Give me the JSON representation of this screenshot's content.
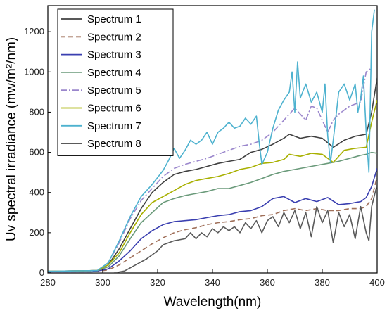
{
  "chart_data": {
    "type": "line",
    "title": "",
    "xlabel": "Wavelength(nm)",
    "ylabel": "Uv spectral irradiance (mw/m²/nm)",
    "xlim": [
      280,
      400
    ],
    "ylim": [
      0,
      1330
    ],
    "xticks": [
      280,
      300,
      320,
      340,
      360,
      380,
      400
    ],
    "yticks": [
      0,
      200,
      400,
      600,
      800,
      1000,
      1200
    ],
    "grid": false,
    "legend_position": "top-left",
    "series": [
      {
        "name": "Spectrum 1",
        "color": "#404040",
        "dash": "solid",
        "points": [
          [
            280,
            8
          ],
          [
            290,
            10
          ],
          [
            298,
            12
          ],
          [
            302,
            40
          ],
          [
            306,
            120
          ],
          [
            310,
            220
          ],
          [
            314,
            320
          ],
          [
            318,
            400
          ],
          [
            322,
            450
          ],
          [
            326,
            490
          ],
          [
            330,
            505
          ],
          [
            334,
            515
          ],
          [
            338,
            530
          ],
          [
            342,
            545
          ],
          [
            346,
            555
          ],
          [
            350,
            565
          ],
          [
            354,
            600
          ],
          [
            358,
            615
          ],
          [
            362,
            640
          ],
          [
            366,
            670
          ],
          [
            368,
            690
          ],
          [
            372,
            670
          ],
          [
            376,
            680
          ],
          [
            380,
            670
          ],
          [
            384,
            625
          ],
          [
            388,
            660
          ],
          [
            392,
            680
          ],
          [
            396,
            690
          ],
          [
            398,
            800
          ],
          [
            400,
            970
          ]
        ]
      },
      {
        "name": "Spectrum 2",
        "color": "#a0705a",
        "dash": "dashed",
        "points": [
          [
            280,
            5
          ],
          [
            296,
            5
          ],
          [
            302,
            15
          ],
          [
            306,
            40
          ],
          [
            310,
            75
          ],
          [
            314,
            110
          ],
          [
            318,
            145
          ],
          [
            322,
            175
          ],
          [
            326,
            200
          ],
          [
            330,
            215
          ],
          [
            334,
            225
          ],
          [
            338,
            240
          ],
          [
            342,
            250
          ],
          [
            346,
            255
          ],
          [
            350,
            265
          ],
          [
            354,
            270
          ],
          [
            358,
            285
          ],
          [
            362,
            290
          ],
          [
            366,
            310
          ],
          [
            370,
            320
          ],
          [
            374,
            310
          ],
          [
            378,
            320
          ],
          [
            382,
            310
          ],
          [
            386,
            310
          ],
          [
            390,
            320
          ],
          [
            394,
            320
          ],
          [
            396,
            330
          ],
          [
            398,
            370
          ],
          [
            400,
            480
          ]
        ]
      },
      {
        "name": "Spectrum 3",
        "color": "#3a3fb0",
        "dash": "solid",
        "points": [
          [
            280,
            5
          ],
          [
            296,
            5
          ],
          [
            302,
            20
          ],
          [
            306,
            60
          ],
          [
            310,
            110
          ],
          [
            314,
            170
          ],
          [
            318,
            210
          ],
          [
            322,
            240
          ],
          [
            326,
            255
          ],
          [
            330,
            260
          ],
          [
            334,
            265
          ],
          [
            338,
            275
          ],
          [
            342,
            285
          ],
          [
            346,
            290
          ],
          [
            350,
            305
          ],
          [
            354,
            310
          ],
          [
            358,
            330
          ],
          [
            362,
            370
          ],
          [
            366,
            380
          ],
          [
            370,
            350
          ],
          [
            374,
            370
          ],
          [
            378,
            355
          ],
          [
            382,
            375
          ],
          [
            386,
            340
          ],
          [
            390,
            345
          ],
          [
            394,
            355
          ],
          [
            396,
            375
          ],
          [
            398,
            430
          ],
          [
            400,
            520
          ]
        ]
      },
      {
        "name": "Spectrum 4",
        "color": "#6a9a7a",
        "dash": "solid",
        "points": [
          [
            280,
            8
          ],
          [
            290,
            10
          ],
          [
            298,
            12
          ],
          [
            302,
            30
          ],
          [
            306,
            85
          ],
          [
            310,
            170
          ],
          [
            314,
            250
          ],
          [
            318,
            300
          ],
          [
            322,
            350
          ],
          [
            326,
            370
          ],
          [
            330,
            385
          ],
          [
            334,
            395
          ],
          [
            338,
            405
          ],
          [
            342,
            420
          ],
          [
            346,
            420
          ],
          [
            350,
            435
          ],
          [
            354,
            450
          ],
          [
            358,
            470
          ],
          [
            362,
            490
          ],
          [
            366,
            505
          ],
          [
            370,
            515
          ],
          [
            374,
            525
          ],
          [
            378,
            535
          ],
          [
            382,
            545
          ],
          [
            386,
            555
          ],
          [
            390,
            570
          ],
          [
            394,
            585
          ],
          [
            396,
            590
          ],
          [
            398,
            600
          ],
          [
            400,
            595
          ]
        ]
      },
      {
        "name": "Spectrum 5",
        "color": "#9a86cc",
        "dash": "dashdot",
        "points": [
          [
            280,
            8
          ],
          [
            290,
            10
          ],
          [
            298,
            12
          ],
          [
            302,
            50
          ],
          [
            306,
            150
          ],
          [
            310,
            270
          ],
          [
            314,
            360
          ],
          [
            318,
            420
          ],
          [
            322,
            480
          ],
          [
            326,
            520
          ],
          [
            330,
            540
          ],
          [
            334,
            555
          ],
          [
            338,
            570
          ],
          [
            342,
            590
          ],
          [
            346,
            610
          ],
          [
            350,
            630
          ],
          [
            354,
            640
          ],
          [
            358,
            660
          ],
          [
            362,
            700
          ],
          [
            366,
            760
          ],
          [
            370,
            820
          ],
          [
            374,
            760
          ],
          [
            376,
            830
          ],
          [
            378,
            820
          ],
          [
            382,
            700
          ],
          [
            384,
            760
          ],
          [
            386,
            790
          ],
          [
            390,
            830
          ],
          [
            394,
            850
          ],
          [
            396,
            1000
          ],
          [
            398,
            1020
          ]
        ]
      },
      {
        "name": "Spectrum 6",
        "color": "#a8b000",
        "dash": "solid",
        "points": [
          [
            280,
            8
          ],
          [
            290,
            10
          ],
          [
            298,
            12
          ],
          [
            302,
            40
          ],
          [
            306,
            100
          ],
          [
            310,
            200
          ],
          [
            314,
            290
          ],
          [
            318,
            350
          ],
          [
            322,
            380
          ],
          [
            326,
            410
          ],
          [
            330,
            440
          ],
          [
            334,
            460
          ],
          [
            338,
            470
          ],
          [
            342,
            480
          ],
          [
            346,
            495
          ],
          [
            350,
            515
          ],
          [
            354,
            525
          ],
          [
            358,
            545
          ],
          [
            362,
            550
          ],
          [
            366,
            565
          ],
          [
            368,
            590
          ],
          [
            372,
            580
          ],
          [
            376,
            595
          ],
          [
            380,
            590
          ],
          [
            384,
            550
          ],
          [
            388,
            610
          ],
          [
            392,
            620
          ],
          [
            396,
            625
          ],
          [
            398,
            750
          ],
          [
            400,
            860
          ]
        ]
      },
      {
        "name": "Spectrum 7",
        "color": "#4eb2cf",
        "dash": "solid",
        "points": [
          [
            280,
            8
          ],
          [
            290,
            10
          ],
          [
            298,
            12
          ],
          [
            302,
            50
          ],
          [
            306,
            160
          ],
          [
            310,
            280
          ],
          [
            314,
            380
          ],
          [
            318,
            440
          ],
          [
            322,
            510
          ],
          [
            324,
            560
          ],
          [
            326,
            620
          ],
          [
            328,
            570
          ],
          [
            330,
            610
          ],
          [
            332,
            660
          ],
          [
            334,
            640
          ],
          [
            336,
            660
          ],
          [
            338,
            700
          ],
          [
            340,
            640
          ],
          [
            342,
            700
          ],
          [
            344,
            720
          ],
          [
            346,
            750
          ],
          [
            348,
            720
          ],
          [
            350,
            730
          ],
          [
            352,
            770
          ],
          [
            354,
            740
          ],
          [
            356,
            780
          ],
          [
            357,
            650
          ],
          [
            358,
            540
          ],
          [
            360,
            600
          ],
          [
            362,
            720
          ],
          [
            364,
            810
          ],
          [
            366,
            860
          ],
          [
            368,
            900
          ],
          [
            369,
            1000
          ],
          [
            370,
            800
          ],
          [
            371,
            1050
          ],
          [
            372,
            870
          ],
          [
            374,
            940
          ],
          [
            376,
            850
          ],
          [
            378,
            900
          ],
          [
            380,
            800
          ],
          [
            381,
            940
          ],
          [
            382,
            680
          ],
          [
            383,
            550
          ],
          [
            384,
            660
          ],
          [
            386,
            900
          ],
          [
            388,
            940
          ],
          [
            390,
            860
          ],
          [
            392,
            940
          ],
          [
            393,
            800
          ],
          [
            394,
            870
          ],
          [
            395,
            980
          ],
          [
            396,
            700
          ],
          [
            397,
            500
          ],
          [
            398,
            1200
          ],
          [
            399,
            1310
          ]
        ]
      },
      {
        "name": "Spectrum 8",
        "color": "#5a5a5a",
        "dash": "solid",
        "points": [
          [
            280,
            0
          ],
          [
            296,
            0
          ],
          [
            304,
            0
          ],
          [
            308,
            10
          ],
          [
            312,
            40
          ],
          [
            316,
            70
          ],
          [
            320,
            110
          ],
          [
            322,
            140
          ],
          [
            326,
            160
          ],
          [
            330,
            170
          ],
          [
            332,
            200
          ],
          [
            334,
            170
          ],
          [
            336,
            200
          ],
          [
            338,
            180
          ],
          [
            340,
            220
          ],
          [
            342,
            200
          ],
          [
            344,
            230
          ],
          [
            346,
            210
          ],
          [
            348,
            230
          ],
          [
            350,
            200
          ],
          [
            352,
            250
          ],
          [
            354,
            220
          ],
          [
            356,
            260
          ],
          [
            358,
            200
          ],
          [
            360,
            260
          ],
          [
            362,
            280
          ],
          [
            364,
            230
          ],
          [
            366,
            300
          ],
          [
            368,
            250
          ],
          [
            370,
            310
          ],
          [
            372,
            220
          ],
          [
            374,
            300
          ],
          [
            376,
            180
          ],
          [
            378,
            330
          ],
          [
            380,
            250
          ],
          [
            382,
            310
          ],
          [
            384,
            150
          ],
          [
            386,
            300
          ],
          [
            388,
            230
          ],
          [
            390,
            290
          ],
          [
            392,
            170
          ],
          [
            394,
            330
          ],
          [
            396,
            200
          ],
          [
            397,
            160
          ],
          [
            398,
            330
          ],
          [
            400,
            440
          ]
        ]
      }
    ]
  }
}
